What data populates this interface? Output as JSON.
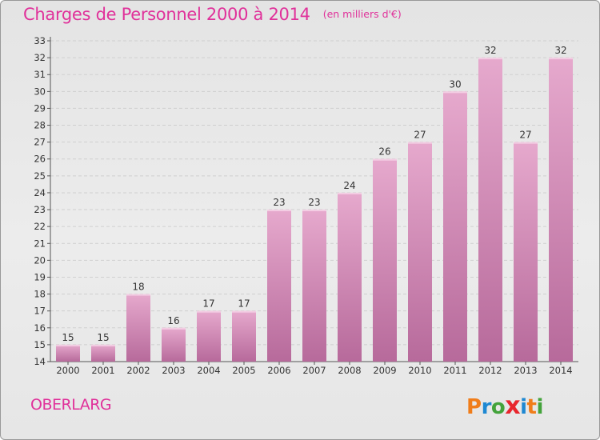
{
  "header": {
    "title": "Charges de Personnel 2000 à 2014",
    "subtitle": "(en milliers d'€)"
  },
  "footer": {
    "city": "OBERLARG",
    "logo_letters": [
      "P",
      "r",
      "o",
      "x",
      "i",
      "t",
      "i"
    ],
    "logo_colors": [
      "#f07d1a",
      "#1e88d2",
      "#43a33b",
      "#e8262d",
      "#1e88d2",
      "#f07d1a",
      "#43a33b"
    ]
  },
  "chart_data": {
    "type": "bar",
    "title": "Charges de Personnel 2000 à 2014",
    "subtitle": "(en milliers d'€)",
    "xlabel": "",
    "ylabel": "",
    "categories": [
      "2000",
      "2001",
      "2002",
      "2003",
      "2004",
      "2005",
      "2006",
      "2007",
      "2008",
      "2009",
      "2010",
      "2011",
      "2012",
      "2013",
      "2014"
    ],
    "values": [
      15,
      15,
      18,
      16,
      17,
      17,
      23,
      23,
      24,
      26,
      27,
      30,
      32,
      27,
      32
    ],
    "ylim": [
      14,
      33
    ],
    "yticks": [
      14,
      15,
      16,
      17,
      18,
      19,
      20,
      21,
      22,
      23,
      24,
      25,
      26,
      27,
      28,
      29,
      30,
      31,
      32,
      33
    ],
    "grid": true,
    "legend": "none",
    "bar_color": "#d58cbc",
    "bar_color_light": "#e6a9cd",
    "bar_color_dark": "#b76a9b"
  }
}
